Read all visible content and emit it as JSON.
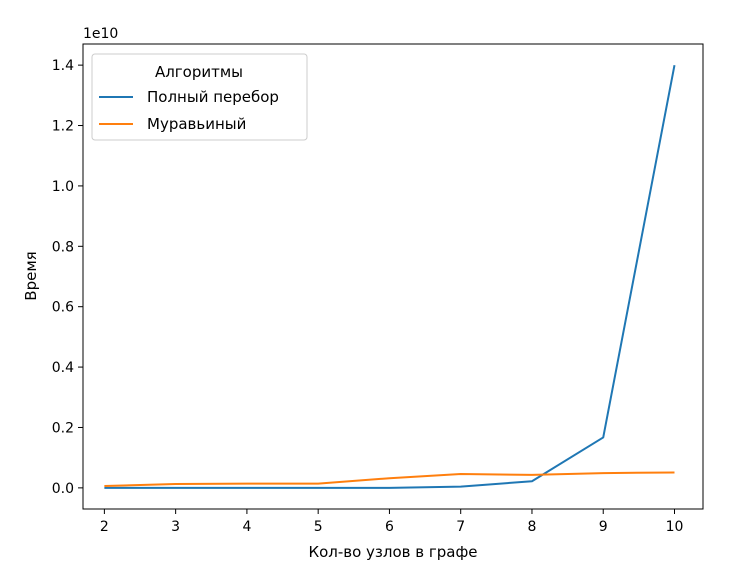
{
  "chart_data": {
    "type": "line",
    "x": [
      2,
      3,
      4,
      5,
      6,
      7,
      8,
      9,
      10
    ],
    "xlabel": "Кол-во узлов в графе",
    "ylabel": "Время",
    "y_offset_text": "1e10",
    "y_scale": 10000000000,
    "xlim": [
      1.7,
      10.4
    ],
    "ylim": [
      -0.07,
      1.47
    ],
    "xticks": [
      "2",
      "3",
      "4",
      "5",
      "6",
      "7",
      "8",
      "9",
      "10"
    ],
    "yticks": [
      "0.0",
      "0.2",
      "0.4",
      "0.6",
      "0.8",
      "1.0",
      "1.2",
      "1.4"
    ],
    "legend": {
      "title": "Алгоритмы",
      "placement": "top-left"
    },
    "series": [
      {
        "name": "Полный перебор",
        "color": "#1f77b4",
        "values": [
          0.0,
          0.0,
          0.0,
          0.0,
          0.0,
          0.004,
          0.022,
          0.167,
          1.4
        ]
      },
      {
        "name": "Муравьиный",
        "color": "#ff7f0e",
        "values": [
          0.006,
          0.013,
          0.014,
          0.014,
          0.032,
          0.046,
          0.043,
          0.049,
          0.051
        ]
      }
    ]
  }
}
